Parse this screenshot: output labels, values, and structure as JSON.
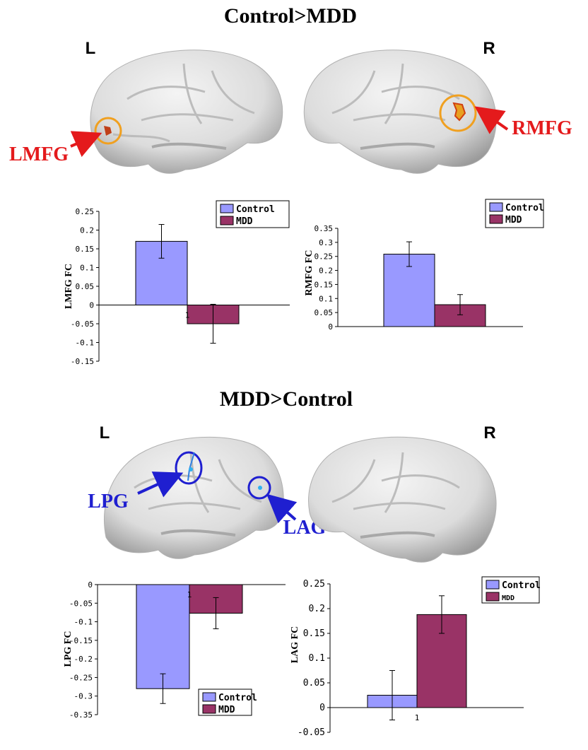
{
  "sections": [
    {
      "title": "Control>MDD",
      "left_label": "L",
      "right_label": "R",
      "regions": [
        "LMFG",
        "RMFG"
      ]
    },
    {
      "title": "MDD>Control",
      "left_label": "L",
      "right_label": "R",
      "regions": [
        "LPG",
        "LAG"
      ]
    }
  ],
  "colors": {
    "control": "#9999ff",
    "mdd": "#993366",
    "red_marker": "#e41a1c",
    "blue_marker": "#1f1fd0",
    "orange_ring": "#f0a020"
  },
  "chart_data": [
    {
      "type": "bar",
      "ylabel": "LMFG FC",
      "ylim": [
        -0.15,
        0.25
      ],
      "yticks": [
        "0.25",
        "0.2",
        "0.15",
        "0.1",
        "0.05",
        "0",
        "-0.05",
        "-0.1",
        "-0.15"
      ],
      "ytick_values": [
        0.25,
        0.2,
        0.15,
        0.1,
        0.05,
        0,
        -0.05,
        -0.1,
        -0.15
      ],
      "categories": [
        "1"
      ],
      "series": [
        {
          "name": "Control",
          "values": [
            0.17
          ],
          "error": [
            0.045
          ]
        },
        {
          "name": "MDD",
          "values": [
            -0.05
          ],
          "error": [
            0.052
          ]
        }
      ],
      "legend": "top-right"
    },
    {
      "type": "bar",
      "ylabel": "RMFG FC",
      "ylim": [
        0,
        0.35
      ],
      "yticks": [
        "0.35",
        "0.3",
        "0.25",
        "0.2",
        "0.15",
        "0.1",
        "0.05",
        "0"
      ],
      "ytick_values": [
        0.35,
        0.3,
        0.25,
        0.2,
        0.15,
        0.1,
        0.05,
        0
      ],
      "categories": [
        ""
      ],
      "series": [
        {
          "name": "Control",
          "values": [
            0.258
          ],
          "error": [
            0.044
          ]
        },
        {
          "name": "MDD",
          "values": [
            0.078
          ],
          "error": [
            0.036
          ]
        }
      ],
      "legend": "top-right"
    },
    {
      "type": "bar",
      "ylabel": "LPG FC",
      "ylim": [
        -0.35,
        0
      ],
      "yticks": [
        "0",
        "-0.05",
        "-0.1",
        "-0.15",
        "-0.2",
        "-0.25",
        "-0.3",
        "-0.35"
      ],
      "ytick_values": [
        0,
        -0.05,
        -0.1,
        -0.15,
        -0.2,
        -0.25,
        -0.3,
        -0.35
      ],
      "categories": [
        "1"
      ],
      "series": [
        {
          "name": "Control",
          "values": [
            -0.28
          ],
          "error": [
            0.04
          ]
        },
        {
          "name": "MDD",
          "values": [
            -0.077
          ],
          "error": [
            0.042
          ]
        }
      ],
      "legend": "bottom-right"
    },
    {
      "type": "bar",
      "ylabel": "LAG FC",
      "ylim": [
        -0.05,
        0.25
      ],
      "yticks": [
        "0.25",
        "0.2",
        "0.15",
        "0.1",
        "0.05",
        "0",
        "-0.05"
      ],
      "ytick_values": [
        0.25,
        0.2,
        0.15,
        0.1,
        0.05,
        0,
        -0.05
      ],
      "categories": [
        "1"
      ],
      "series": [
        {
          "name": "Control",
          "values": [
            0.025
          ],
          "error": [
            0.05
          ]
        },
        {
          "name": "MDD",
          "values": [
            0.188
          ],
          "error": [
            0.038
          ]
        }
      ],
      "legend": "top-right"
    }
  ]
}
